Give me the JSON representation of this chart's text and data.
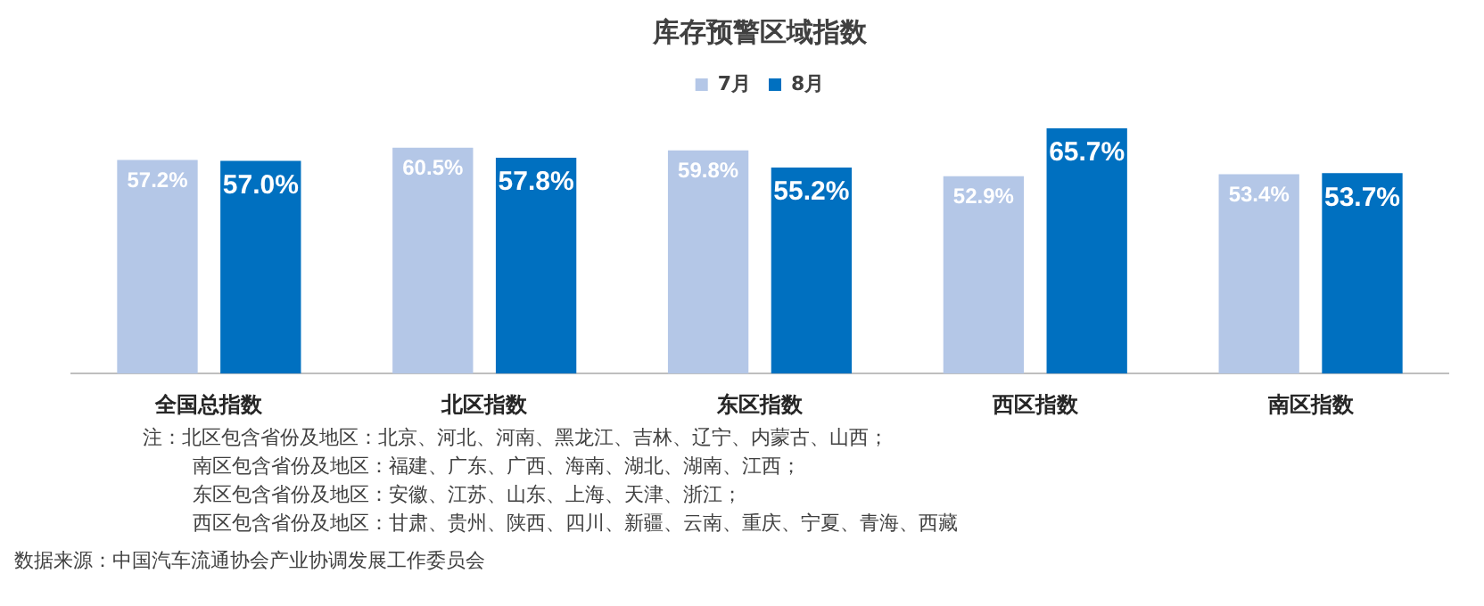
{
  "chart_data": {
    "type": "bar",
    "title": "库存预警区域指数",
    "categories": [
      "全国总指数",
      "北区指数",
      "东区指数",
      "西区指数",
      "南区指数"
    ],
    "series": [
      {
        "name": "7月",
        "color": "#b4c7e7",
        "values": [
          57.2,
          60.5,
          59.8,
          52.9,
          53.4
        ],
        "value_labels": [
          "57.2%",
          "60.5%",
          "59.8%",
          "52.9%",
          "53.4%"
        ]
      },
      {
        "name": "8月",
        "color": "#0070c0",
        "values": [
          57.0,
          57.8,
          55.2,
          65.7,
          53.7
        ],
        "value_labels": [
          "57.0%",
          "57.8%",
          "55.2%",
          "65.7%",
          "53.7%"
        ]
      }
    ],
    "legend": "top",
    "grid": false,
    "annotations": [
      "注：北区包含省份及地区：北京、河北、河南、黑龙江、吉林、辽宁、内蒙古、山西；",
      "南区包含省份及地区：福建、广东、广西、海南、湖北、湖南、江西；",
      "东区包含省份及地区：安徽、江苏、山东、上海、天津、浙江；",
      "西区包含省份及地区：甘肃、贵州、陕西、四川、新疆、云南、重庆、宁夏、青海、西藏",
      "数据来源：中国汽车流通协会产业协调发展工作委员会"
    ]
  }
}
